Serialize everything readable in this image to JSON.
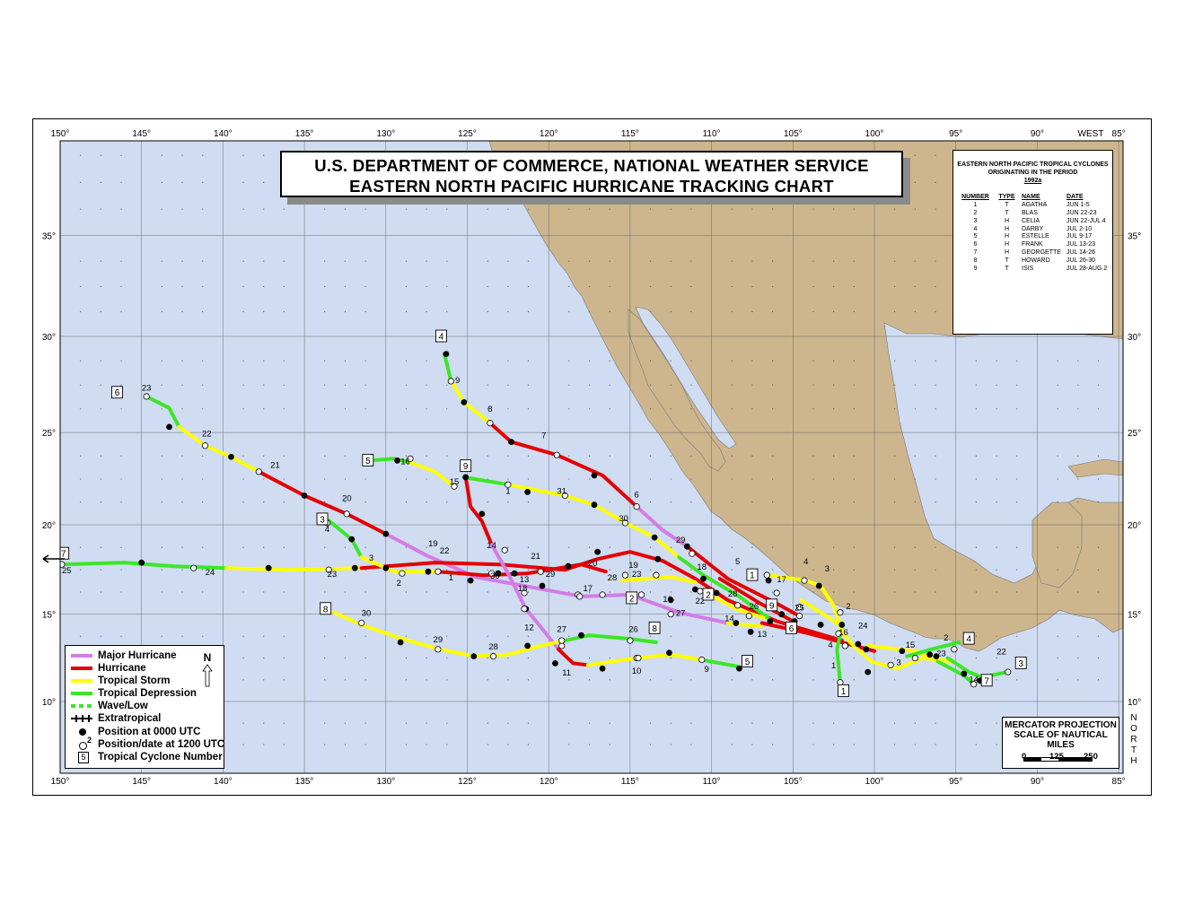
{
  "title": {
    "line1": "U.S. DEPARTMENT OF COMMERCE, NATIONAL WEATHER SERVICE",
    "line2": "EASTERN NORTH PACIFIC HURRICANE TRACKING CHART"
  },
  "axes": {
    "lon_ticks": [
      "150°",
      "145°",
      "140°",
      "135°",
      "130°",
      "125°",
      "120°",
      "115°",
      "110°",
      "105°",
      "100°",
      "95°",
      "90°",
      "85°"
    ],
    "lon_values": [
      150,
      145,
      140,
      135,
      130,
      125,
      120,
      115,
      110,
      105,
      100,
      95,
      90,
      85
    ],
    "west_label": "WEST",
    "lat_ticks": [
      "35°",
      "30°",
      "25°",
      "20°",
      "15°",
      "10°"
    ],
    "lat_values": [
      35,
      30,
      25,
      20,
      15,
      10
    ],
    "north_label": [
      "N",
      "O",
      "R",
      "T",
      "H"
    ]
  },
  "info_box": {
    "heading1": "EASTERN NORTH PACIFIC TROPICAL CYCLONES",
    "heading2": "ORIGINATING IN THE PERIOD",
    "heading3": "1992a",
    "col_number": "NUMBER",
    "col_type": "TYPE",
    "col_name": "NAME",
    "col_date": "DATE",
    "rows": [
      {
        "num": "1",
        "type": "T",
        "name": "AGATHA",
        "date": "JUN 1-5"
      },
      {
        "num": "2",
        "type": "T",
        "name": "BLAS",
        "date": "JUN 22-23"
      },
      {
        "num": "3",
        "type": "H",
        "name": "CELIA",
        "date": "JUN 22-JUL 4"
      },
      {
        "num": "4",
        "type": "H",
        "name": "DARBY",
        "date": "JUL 2-10"
      },
      {
        "num": "5",
        "type": "H",
        "name": "ESTELLE",
        "date": "JUL 9-17"
      },
      {
        "num": "6",
        "type": "H",
        "name": "FRANK",
        "date": "JUL 13-23"
      },
      {
        "num": "7",
        "type": "H",
        "name": "GEORGETTE",
        "date": "JUL 14-26"
      },
      {
        "num": "8",
        "type": "T",
        "name": "HOWARD",
        "date": "JUL 26-30"
      },
      {
        "num": "9",
        "type": "T",
        "name": "ISIS",
        "date": "JUL 28-AUG 2"
      }
    ]
  },
  "legend": {
    "major_hurricane": "Major Hurricane",
    "hurricane": "Hurricane",
    "tropical_storm": "Tropical Storm",
    "tropical_depression": "Tropical Depression",
    "wave_low": "Wave/Low",
    "extratropical": "Extratropical",
    "pos_0000": "Position at 0000 UTC",
    "pos_1200": "Position/date at 1200 UTC",
    "pos_1200_sample": "2",
    "cyclone_number": "Tropical Cyclone Number",
    "cyclone_number_sample": "5",
    "north_arrow": "N"
  },
  "scale": {
    "line1": "MERCATOR PROJECTION",
    "line2": "SCALE OF NAUTICAL MILES",
    "ticks": [
      "0",
      "125",
      "250"
    ]
  },
  "colors": {
    "ocean": "#cfdcf1",
    "land": "#cdb68e",
    "major": "#d47ce6",
    "hurricane": "#e30000",
    "storm": "#ffff00",
    "depression": "#3ce628"
  },
  "track_labels": [
    {
      "t": "23",
      "lon": 144.7,
      "lat": 27.2
    },
    {
      "t": "22",
      "lon": 141,
      "lat": 24.8
    },
    {
      "t": "21",
      "lon": 136.8,
      "lat": 23.1
    },
    {
      "t": "20",
      "lon": 132.4,
      "lat": 21.3
    },
    {
      "t": "19",
      "lon": 127.1,
      "lat": 18.8
    },
    {
      "t": "18",
      "lon": 121.6,
      "lat": 16.3
    },
    {
      "t": "17",
      "lon": 105.7,
      "lat": 16.8
    },
    {
      "t": "16",
      "lon": 101.9,
      "lat": 13.8
    },
    {
      "t": "15",
      "lon": 97.8,
      "lat": 13.1
    },
    {
      "t": "14",
      "lon": 93.9,
      "lat": 11.1
    },
    {
      "t": "13",
      "lon": 106.9,
      "lat": 13.7
    },
    {
      "t": "12",
      "lon": 121.2,
      "lat": 14.1
    },
    {
      "t": "11",
      "lon": 118.9,
      "lat": 11.5
    },
    {
      "t": "10",
      "lon": 114.6,
      "lat": 11.6
    },
    {
      "t": "9",
      "lon": 110.3,
      "lat": 11.7
    },
    {
      "t": "9",
      "lon": 125.6,
      "lat": 27.6
    },
    {
      "t": "8",
      "lon": 123.6,
      "lat": 26.1
    },
    {
      "t": "7",
      "lon": 120.3,
      "lat": 24.7
    },
    {
      "t": "6",
      "lon": 114.6,
      "lat": 21.5
    },
    {
      "t": "5",
      "lon": 108.4,
      "lat": 17.8
    },
    {
      "t": "4",
      "lon": 104.2,
      "lat": 17.8
    },
    {
      "t": "3",
      "lon": 102.9,
      "lat": 17.4
    },
    {
      "t": "2",
      "lon": 101.6,
      "lat": 15.3
    },
    {
      "t": "1",
      "lon": 102.5,
      "lat": 11.9
    },
    {
      "t": "30",
      "lon": 115.4,
      "lat": 20.2
    },
    {
      "t": "31",
      "lon": 119.2,
      "lat": 21.7
    },
    {
      "t": "1",
      "lon": 122.5,
      "lat": 21.7
    },
    {
      "t": "15",
      "lon": 125.8,
      "lat": 22.2
    },
    {
      "t": "16",
      "lon": 128.8,
      "lat": 23.3
    },
    {
      "t": "14",
      "lon": 123.5,
      "lat": 18.7
    },
    {
      "t": "13",
      "lon": 121.5,
      "lat": 16.8
    },
    {
      "t": "30",
      "lon": 123.3,
      "lat": 17.0
    },
    {
      "t": "2",
      "lon": 129.2,
      "lat": 16.6
    },
    {
      "t": "1",
      "lon": 126,
      "lat": 16.9
    },
    {
      "t": "22",
      "lon": 126.4,
      "lat": 18.4
    },
    {
      "t": "21",
      "lon": 120.8,
      "lat": 18.1
    },
    {
      "t": "29",
      "lon": 119.9,
      "lat": 17.1
    },
    {
      "t": "20",
      "lon": 117.3,
      "lat": 17.7
    },
    {
      "t": "19",
      "lon": 114.8,
      "lat": 17.6
    },
    {
      "t": "18",
      "lon": 110.6,
      "lat": 17.5
    },
    {
      "t": "17",
      "lon": 117.6,
      "lat": 16.3
    },
    {
      "t": "16",
      "lon": 112.7,
      "lat": 15.7
    },
    {
      "t": "28",
      "lon": 116.1,
      "lat": 16.9
    },
    {
      "t": "23",
      "lon": 114.6,
      "lat": 17.1
    },
    {
      "t": "29",
      "lon": 111.9,
      "lat": 19.0
    },
    {
      "t": "22",
      "lon": 110.7,
      "lat": 15.6
    },
    {
      "t": "27",
      "lon": 111.9,
      "lat": 14.9
    },
    {
      "t": "28",
      "lon": 108.7,
      "lat": 16.0
    },
    {
      "t": "26",
      "lon": 107.4,
      "lat": 15.3
    },
    {
      "t": "14",
      "lon": 108.9,
      "lat": 14.6
    },
    {
      "t": "25",
      "lon": 104.6,
      "lat": 15.2
    },
    {
      "t": "24",
      "lon": 100.7,
      "lat": 14.2
    },
    {
      "t": "23",
      "lon": 95.9,
      "lat": 12.6
    },
    {
      "t": "22",
      "lon": 92.2,
      "lat": 12.7
    },
    {
      "t": "2",
      "lon": 95.6,
      "lat": 13.5
    },
    {
      "t": "3",
      "lon": 98.5,
      "lat": 12.1
    },
    {
      "t": "4",
      "lon": 102.7,
      "lat": 13.1
    },
    {
      "t": "30",
      "lon": 131.2,
      "lat": 14.9
    },
    {
      "t": "29",
      "lon": 126.8,
      "lat": 13.4
    },
    {
      "t": "28",
      "lon": 123.4,
      "lat": 13.0
    },
    {
      "t": "27",
      "lon": 119.2,
      "lat": 14.0
    },
    {
      "t": "26",
      "lon": 114.8,
      "lat": 14.0
    },
    {
      "t": "25",
      "lon": 149.6,
      "lat": 17.3
    },
    {
      "t": "24",
      "lon": 140.8,
      "lat": 17.2
    },
    {
      "t": "23",
      "lon": 133.3,
      "lat": 17.1
    },
    {
      "t": "4",
      "lon": 133.6,
      "lat": 19.6
    },
    {
      "t": "3",
      "lon": 130.9,
      "lat": 18.0
    }
  ],
  "cyclone_number_boxes": [
    {
      "t": "6",
      "lon": 146.5,
      "lat": 27.1
    },
    {
      "t": "7",
      "lon": 149.8,
      "lat": 18.4
    },
    {
      "t": "4",
      "lon": 126.6,
      "lat": 30.0
    },
    {
      "t": "5",
      "lon": 131.1,
      "lat": 23.5
    },
    {
      "t": "9",
      "lon": 125.1,
      "lat": 23.2
    },
    {
      "t": "3",
      "lon": 133.9,
      "lat": 20.3
    },
    {
      "t": "8",
      "lon": 133.7,
      "lat": 15.3
    },
    {
      "t": "1",
      "lon": 107.5,
      "lat": 17.2
    },
    {
      "t": "2",
      "lon": 114.9,
      "lat": 15.9
    },
    {
      "t": "2",
      "lon": 110.2,
      "lat": 16.1
    },
    {
      "t": "9",
      "lon": 106.3,
      "lat": 15.5
    },
    {
      "t": "6",
      "lon": 105.1,
      "lat": 14.2
    },
    {
      "t": "8",
      "lon": 113.5,
      "lat": 14.2
    },
    {
      "t": "5",
      "lon": 107.8,
      "lat": 12.3
    },
    {
      "t": "4",
      "lon": 94.2,
      "lat": 13.6
    },
    {
      "t": "3",
      "lon": 91.0,
      "lat": 12.2
    },
    {
      "t": "7",
      "lon": 93.1,
      "lat": 11.2
    },
    {
      "t": "1",
      "lon": 101.9,
      "lat": 10.6
    }
  ]
}
